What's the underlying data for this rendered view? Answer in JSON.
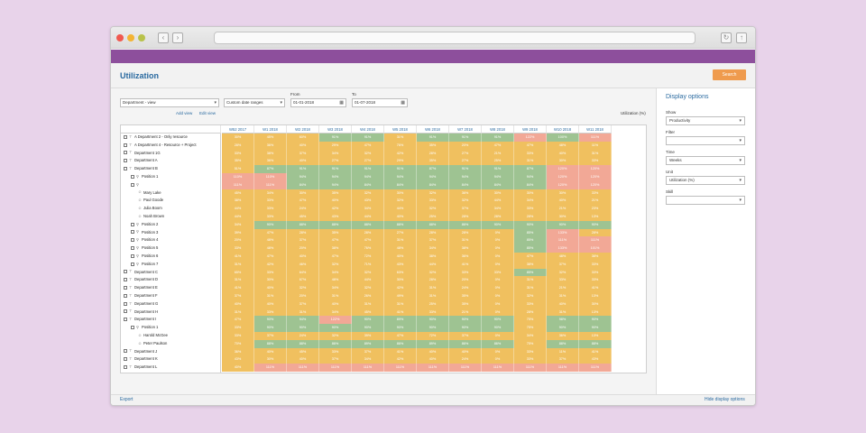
{
  "page": {
    "title": "Utilization"
  },
  "toolbar": {
    "search_label": "Search",
    "view_select": "Department - view",
    "range_select": "Custom date ranges",
    "from_label": "From",
    "from_value": "01-01-2018",
    "to_label": "To",
    "to_value": "01-07-2018",
    "add_view": "Add view",
    "edit_view": "Edit view",
    "unit_label": "Utilization (%)"
  },
  "footer": {
    "export_label": "Export",
    "hide_label": "Hide display options"
  },
  "display_options": {
    "title": "Display options",
    "fields": [
      {
        "label": "Show",
        "value": "Productivity"
      },
      {
        "label": "Filter",
        "value": ""
      },
      {
        "label": "Time",
        "value": "Weeks"
      },
      {
        "label": "Unit",
        "value": "Utilization (%)"
      },
      {
        "label": "Skill",
        "value": ""
      }
    ]
  },
  "columns": [
    "W52 2017",
    "W1 2018",
    "W2 2018",
    "W3 2018",
    "W4 2018",
    "W5 2018",
    "W6 2018",
    "W7 2018",
    "W8 2018",
    "W9 2018",
    "W10 2018",
    "W11 2018"
  ],
  "rows": [
    {
      "label": "A Department 2 - Only resource",
      "type": "dept",
      "indent": 0,
      "cells": [
        "30%",
        "45%",
        "60%",
        "91%",
        "91%",
        "31%",
        "91%",
        "91%",
        "91%",
        "122%",
        "100%",
        "111%"
      ]
    },
    {
      "label": "A Department 4 - Resource + Project",
      "type": "dept",
      "indent": 0,
      "cells": [
        "28%",
        "36%",
        "40%",
        "29%",
        "47%",
        "76%",
        "35%",
        "20%",
        "47%",
        "47%",
        "48%",
        "11%"
      ]
    },
    {
      "label": "Department 1G",
      "type": "dept",
      "indent": 0,
      "cells": [
        "33%",
        "38%",
        "37%",
        "34%",
        "32%",
        "42%",
        "28%",
        "27%",
        "21%",
        "33%",
        "40%",
        "31%"
      ]
    },
    {
      "label": "Department A",
      "type": "dept",
      "indent": 0,
      "cells": [
        "35%",
        "36%",
        "40%",
        "27%",
        "27%",
        "29%",
        "35%",
        "27%",
        "25%",
        "31%",
        "30%",
        "33%"
      ]
    },
    {
      "label": "Department B",
      "type": "dept",
      "indent": 0,
      "cells": [
        "51%",
        "87%",
        "91%",
        "91%",
        "91%",
        "91%",
        "87%",
        "91%",
        "91%",
        "87%",
        "120%",
        "120%"
      ]
    },
    {
      "label": "Position 1",
      "type": "pos",
      "indent": 1,
      "cells": [
        "110%",
        "110%",
        "94%",
        "94%",
        "94%",
        "94%",
        "94%",
        "94%",
        "94%",
        "94%",
        "120%",
        "120%"
      ]
    },
    {
      "label": "",
      "type": "pos",
      "indent": 1,
      "cells": [
        "111%",
        "111%",
        "84%",
        "94%",
        "84%",
        "84%",
        "84%",
        "84%",
        "84%",
        "84%",
        "120%",
        "120%"
      ]
    },
    {
      "label": "Mary Lake",
      "type": "person",
      "indent": 2,
      "cells": [
        "45%",
        "34%",
        "30%",
        "35%",
        "32%",
        "30%",
        "32%",
        "36%",
        "30%",
        "30%",
        "30%",
        "33%"
      ]
    },
    {
      "label": "Paul Goode",
      "type": "person",
      "indent": 2,
      "cells": [
        "38%",
        "33%",
        "47%",
        "40%",
        "43%",
        "32%",
        "33%",
        "32%",
        "44%",
        "34%",
        "40%",
        "21%"
      ]
    },
    {
      "label": "Julia Boom",
      "type": "person",
      "indent": 2,
      "cells": [
        "44%",
        "33%",
        "24%",
        "42%",
        "34%",
        "44%",
        "32%",
        "37%",
        "34%",
        "33%",
        "21%",
        "23%"
      ]
    },
    {
      "label": "Noah Brown",
      "type": "person",
      "indent": 2,
      "cells": [
        "44%",
        "33%",
        "45%",
        "43%",
        "44%",
        "40%",
        "25%",
        "28%",
        "28%",
        "28%",
        "30%",
        "13%"
      ]
    },
    {
      "label": "Position 2",
      "type": "pos",
      "indent": 1,
      "cells": [
        "34%",
        "90%",
        "88%",
        "88%",
        "88%",
        "88%",
        "88%",
        "86%",
        "90%",
        "90%",
        "90%",
        "90%"
      ]
    },
    {
      "label": "Position 3",
      "type": "pos",
      "indent": 1,
      "cells": [
        "39%",
        "47%",
        "28%",
        "35%",
        "28%",
        "27%",
        "28%",
        "28%",
        "0%",
        "85%",
        "133%",
        "28%"
      ]
    },
    {
      "label": "Position 4",
      "type": "pos",
      "indent": 1,
      "cells": [
        "20%",
        "48%",
        "37%",
        "47%",
        "47%",
        "31%",
        "37%",
        "31%",
        "0%",
        "85%",
        "111%",
        "111%"
      ]
    },
    {
      "label": "Position 5",
      "type": "pos",
      "indent": 1,
      "cells": [
        "33%",
        "48%",
        "20%",
        "38%",
        "76%",
        "48%",
        "34%",
        "38%",
        "0%",
        "85%",
        "133%",
        "101%"
      ]
    },
    {
      "label": "Position 6",
      "type": "pos",
      "indent": 1,
      "cells": [
        "41%",
        "47%",
        "40%",
        "47%",
        "72%",
        "40%",
        "38%",
        "36%",
        "0%",
        "47%",
        "48%",
        "38%"
      ]
    },
    {
      "label": "Position 7",
      "type": "pos",
      "indent": 1,
      "cells": [
        "31%",
        "42%",
        "46%",
        "32%",
        "71%",
        "43%",
        "44%",
        "41%",
        "0%",
        "38%",
        "37%",
        "33%"
      ]
    },
    {
      "label": "Department C",
      "type": "dept",
      "indent": 0,
      "cells": [
        "65%",
        "33%",
        "64%",
        "34%",
        "32%",
        "63%",
        "32%",
        "33%",
        "33%",
        "85%",
        "32%",
        "33%"
      ]
    },
    {
      "label": "Department D",
      "type": "dept",
      "indent": 0,
      "cells": [
        "31%",
        "30%",
        "67%",
        "48%",
        "44%",
        "30%",
        "28%",
        "20%",
        "0%",
        "31%",
        "33%",
        "33%"
      ]
    },
    {
      "label": "Department E",
      "type": "dept",
      "indent": 0,
      "cells": [
        "41%",
        "40%",
        "32%",
        "34%",
        "32%",
        "42%",
        "31%",
        "24%",
        "0%",
        "31%",
        "21%",
        "41%"
      ]
    },
    {
      "label": "Department F",
      "type": "dept",
      "indent": 0,
      "cells": [
        "37%",
        "31%",
        "20%",
        "31%",
        "26%",
        "49%",
        "31%",
        "35%",
        "0%",
        "32%",
        "31%",
        "13%"
      ]
    },
    {
      "label": "Department G",
      "type": "dept",
      "indent": 0,
      "cells": [
        "40%",
        "40%",
        "37%",
        "40%",
        "31%",
        "31%",
        "25%",
        "35%",
        "0%",
        "33%",
        "40%",
        "30%"
      ]
    },
    {
      "label": "Department H",
      "type": "dept",
      "indent": 0,
      "cells": [
        "31%",
        "33%",
        "31%",
        "34%",
        "45%",
        "41%",
        "33%",
        "21%",
        "0%",
        "28%",
        "31%",
        "13%"
      ]
    },
    {
      "label": "Department I",
      "type": "dept",
      "indent": 0,
      "cells": [
        "47%",
        "90%",
        "94%",
        "122%",
        "90%",
        "89%",
        "90%",
        "90%",
        "90%",
        "75%",
        "98%",
        "90%"
      ]
    },
    {
      "label": "Position 1",
      "type": "pos",
      "indent": 1,
      "cells": [
        "33%",
        "90%",
        "90%",
        "90%",
        "90%",
        "90%",
        "90%",
        "90%",
        "90%",
        "75%",
        "90%",
        "90%"
      ]
    },
    {
      "label": "Harold McGee",
      "type": "person",
      "indent": 2,
      "cells": [
        "33%",
        "37%",
        "24%",
        "32%",
        "39%",
        "47%",
        "72%",
        "37%",
        "0%",
        "34%",
        "36%",
        "13%"
      ]
    },
    {
      "label": "Peter Paulson",
      "type": "person",
      "indent": 2,
      "cells": [
        "70%",
        "88%",
        "88%",
        "86%",
        "89%",
        "86%",
        "89%",
        "86%",
        "86%",
        "75%",
        "88%",
        "88%"
      ]
    },
    {
      "label": "Department J",
      "type": "dept",
      "indent": 0,
      "cells": [
        "36%",
        "40%",
        "45%",
        "33%",
        "37%",
        "41%",
        "40%",
        "40%",
        "0%",
        "33%",
        "11%",
        "41%"
      ]
    },
    {
      "label": "Department K",
      "type": "dept",
      "indent": 0,
      "cells": [
        "43%",
        "30%",
        "40%",
        "37%",
        "34%",
        "42%",
        "40%",
        "24%",
        "0%",
        "33%",
        "37%",
        "43%"
      ]
    },
    {
      "label": "Department L",
      "type": "dept",
      "indent": 0,
      "cells": [
        "40%",
        "111%",
        "111%",
        "111%",
        "111%",
        "111%",
        "111%",
        "111%",
        "111%",
        "111%",
        "111%",
        "111%"
      ]
    }
  ],
  "colors": {
    "low": "#f0c05f",
    "mid": "#9ec392",
    "high": "#f2a896"
  }
}
